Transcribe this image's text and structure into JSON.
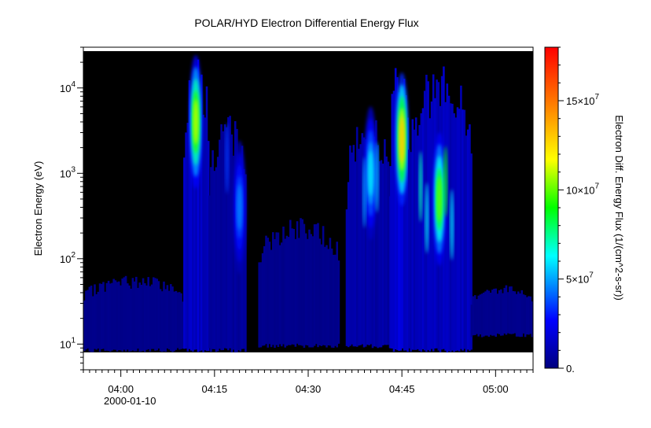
{
  "chart_data": {
    "type": "heatmap",
    "title": "POLAR/HYD  Electron Differential Energy Flux",
    "ylabel": "Electron Energy (eV)",
    "zlabel": "Electron Diff. Energy Flux (1/(cm^2-s-sr))",
    "x_ticks": [
      "04:00",
      "04:15",
      "04:30",
      "04:45",
      "05:00"
    ],
    "x_date_label": "2000-01-10",
    "x_range": [
      "03:54",
      "05:06"
    ],
    "y_scale": "log",
    "y_range": [
      5,
      30000
    ],
    "y_ticks": [
      {
        "value": 10,
        "base": "10",
        "exp": "1"
      },
      {
        "value": 100,
        "base": "10",
        "exp": "2"
      },
      {
        "value": 1000,
        "base": "10",
        "exp": "3"
      },
      {
        "value": 10000,
        "base": "10",
        "exp": "4"
      }
    ],
    "z_range": [
      0,
      180000000
    ],
    "z_ticks": [
      {
        "value": 0,
        "label": "0."
      },
      {
        "value": 50000000,
        "label": "5×10",
        "exp": "7"
      },
      {
        "value": 100000000,
        "label": "10×10",
        "exp": "7"
      },
      {
        "value": 150000000,
        "label": "15×10",
        "exp": "7"
      }
    ],
    "colormap": [
      "#00007f",
      "#0000ff",
      "#00ffff",
      "#00ff00",
      "#ffff00",
      "#ff7f00",
      "#ff0000"
    ],
    "background_color": "#000000",
    "energy_channel_range": [
      8,
      27000
    ],
    "features": [
      {
        "start": "03:54",
        "end": "04:10",
        "emin": 8,
        "emax": 65,
        "peak": 18000000
      },
      {
        "start": "04:10",
        "end": "04:14",
        "emin": 8,
        "emax": 27000,
        "peak": 110000000,
        "peak_time": "04:12",
        "peak_energy": 4000
      },
      {
        "start": "04:14",
        "end": "04:20",
        "emin": 8,
        "emax": 5000,
        "peak": 45000000,
        "peak_time": "04:19",
        "peak_energy": 400
      },
      {
        "start": "04:22",
        "end": "04:35",
        "emin": 9,
        "emax": 300,
        "peak": 20000000
      },
      {
        "start": "04:36",
        "end": "04:43",
        "emin": 9,
        "emax": 5000,
        "peak": 60000000,
        "peak_time": "04:40",
        "peak_energy": 1000
      },
      {
        "start": "04:43",
        "end": "04:46",
        "emin": 8,
        "emax": 25000,
        "peak": 130000000,
        "peak_time": "04:45",
        "peak_energy": 2500
      },
      {
        "start": "04:46",
        "end": "04:56",
        "emin": 8,
        "emax": 20000,
        "peak": 100000000,
        "peak_time": "04:51",
        "peak_energy": 500
      },
      {
        "start": "04:56",
        "end": "05:06",
        "emin": 12,
        "emax": 50,
        "peak": 20000000
      }
    ]
  }
}
